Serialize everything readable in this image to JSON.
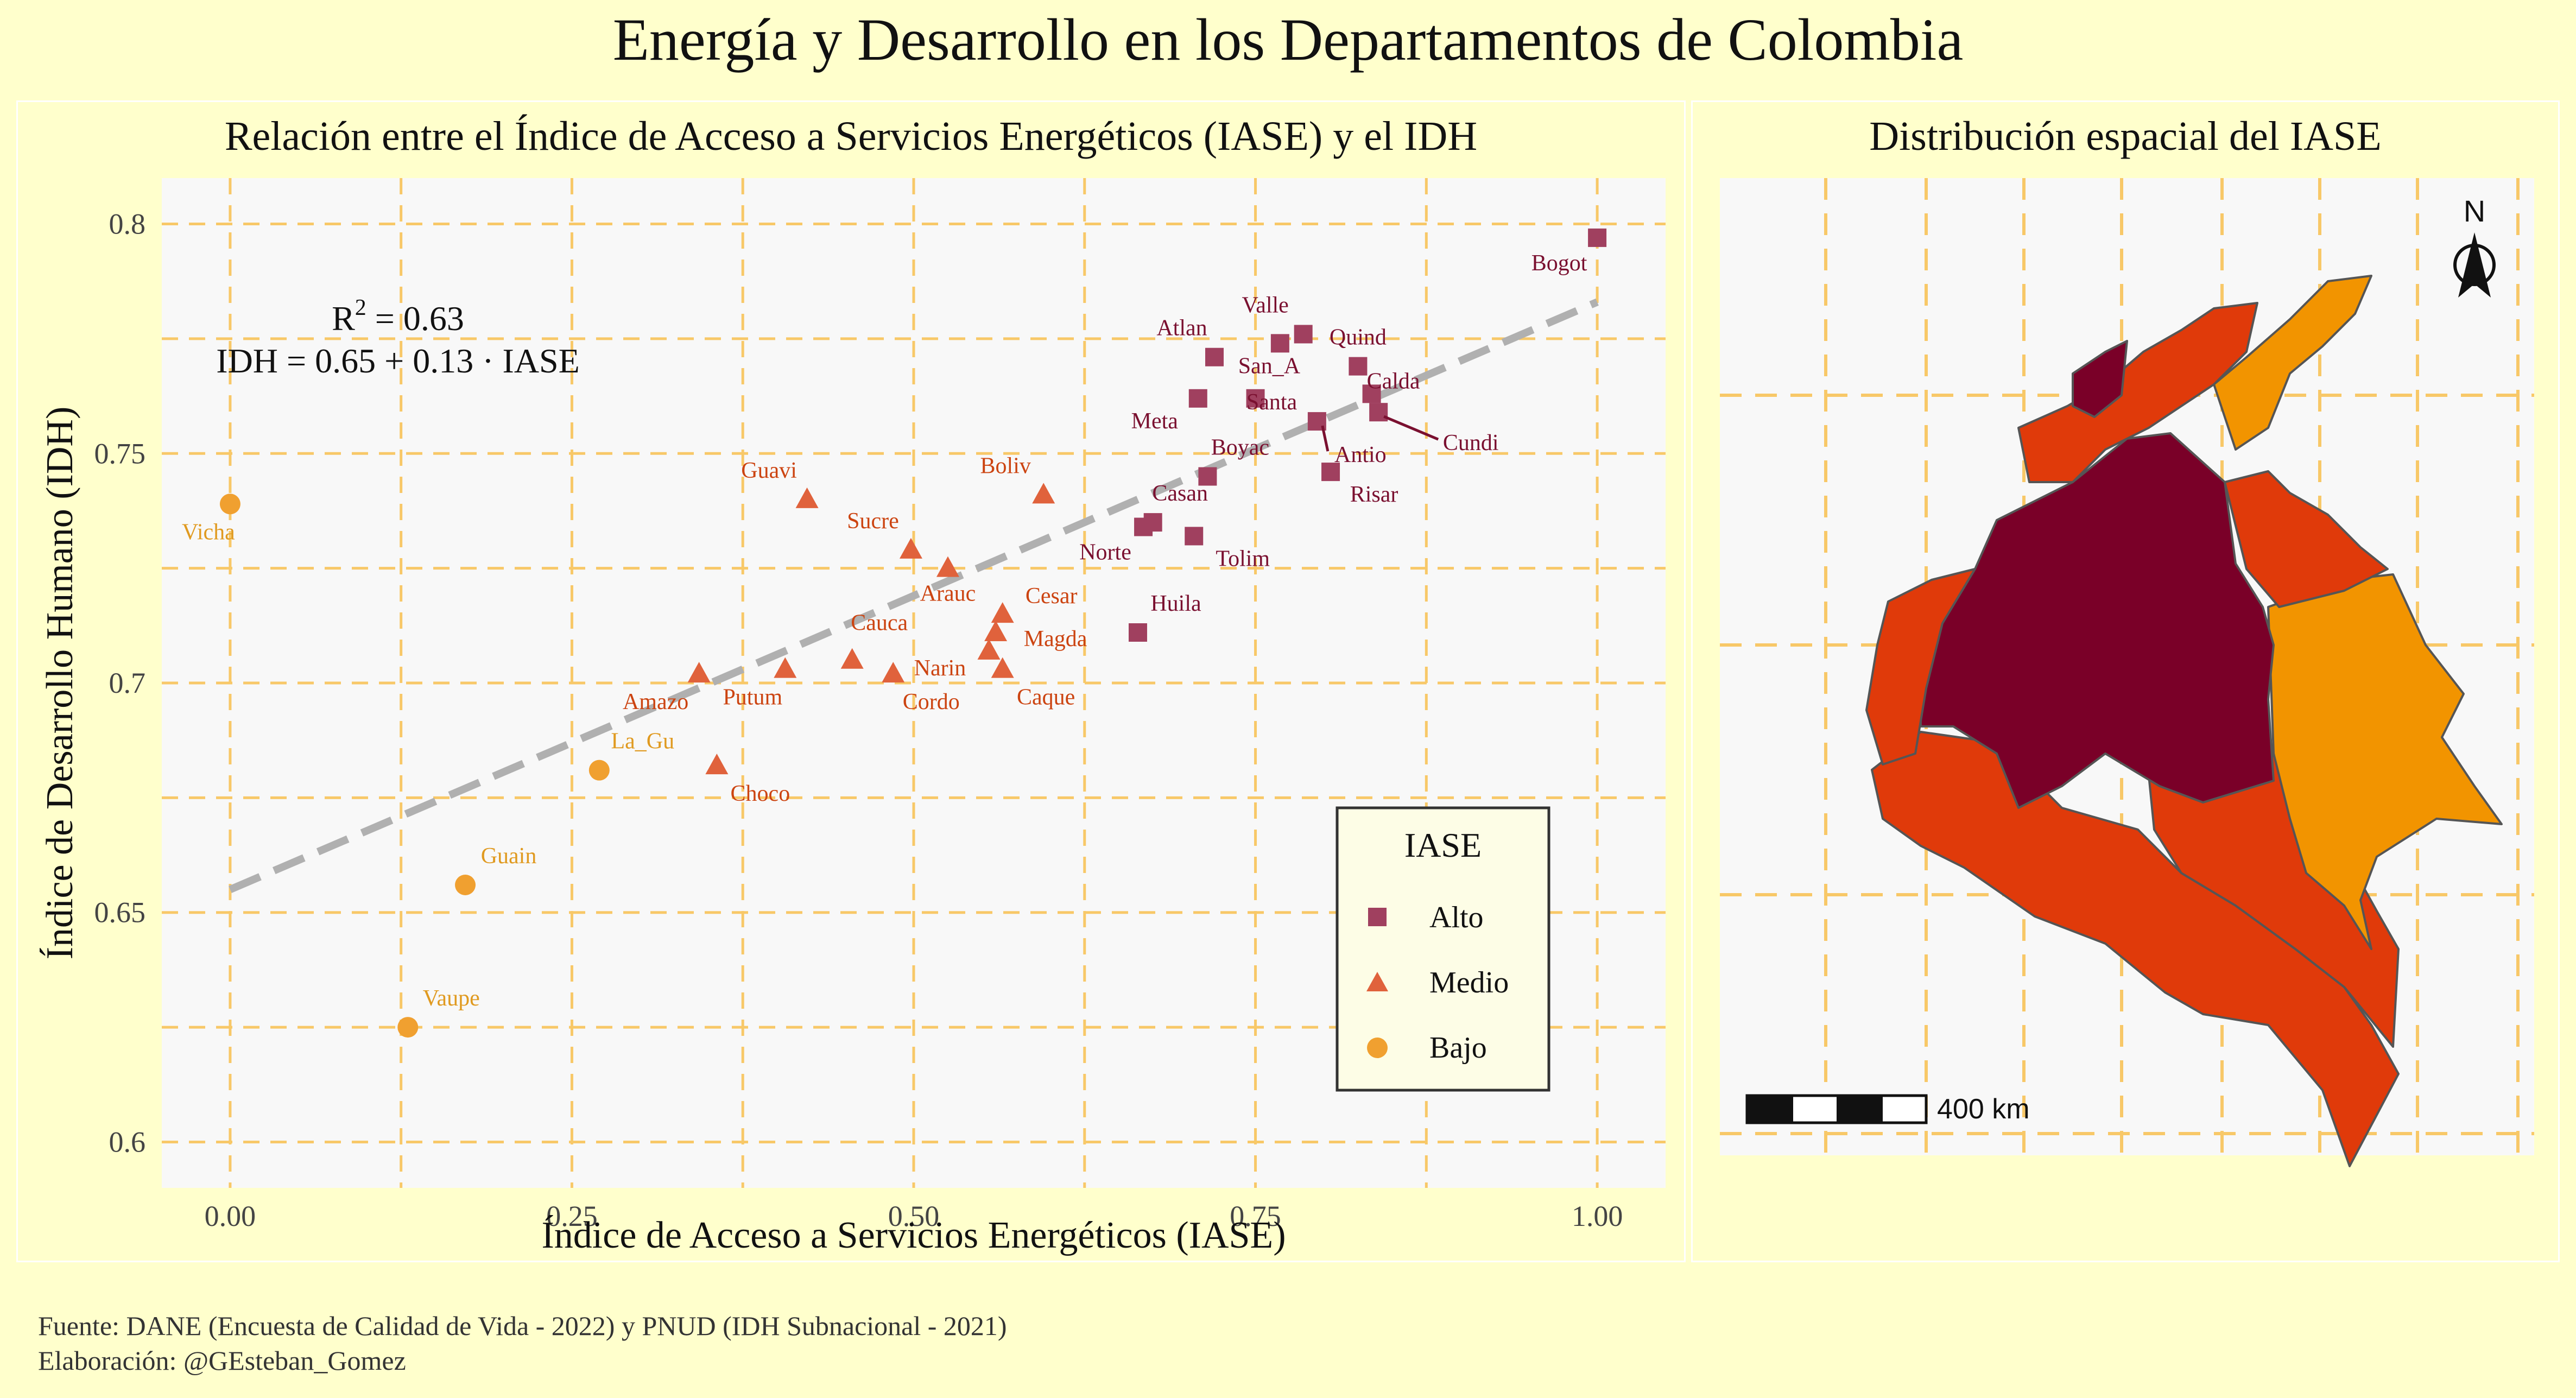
{
  "title": "Energía y Desarrollo en los Departamentos de Colombia",
  "left_panel": {
    "subtitle": "Relación entre el Índice de Acceso a Servicios Energéticos (IASE) y el IDH"
  },
  "right_panel": {
    "subtitle": "Distribución espacial del IASE",
    "scale_label": "400 km",
    "north_label": "N"
  },
  "footer": {
    "source": "Fuente: DANE (Encuesta de Calidad de Vida - 2022) y PNUD (IDH Subnacional - 2021)",
    "credit": "Elaboración: @GEsteban_Gomez"
  },
  "colors": {
    "Alto": "#a0405f",
    "Medio": "#e0623c",
    "Bajo": "#f0a030",
    "Alto_text": "#7a1030",
    "Medio_text": "#cc4411",
    "Bajo_text": "#e09a20",
    "background": "#ffffcc",
    "plot_bg": "#f8f8f8",
    "grid": "#f8c868"
  },
  "chart_data": {
    "type": "scatter",
    "title": "Relación entre el Índice de Acceso a Servicios Energéticos (IASE) y el IDH",
    "xlabel": "Índice de Acceso a Servicios Energéticos (IASE)",
    "ylabel": "Índice de Desarrollo Humano (IDH)",
    "xlim": [
      -0.05,
      1.05
    ],
    "ylim": [
      0.59,
      0.81
    ],
    "xticks": [
      "0.00",
      "0.25",
      "0.50",
      "0.75",
      "1.00"
    ],
    "yticks": [
      "0.6",
      "0.65",
      "0.7",
      "0.75",
      "0.8"
    ],
    "annotation": {
      "r2_prefix": "R",
      "r2_sup": "2",
      "r2_value": " = 0.63",
      "equation": "IDH = 0.65 + 0.13 · IASE"
    },
    "trendline": {
      "intercept": 0.655,
      "slope": 0.128
    },
    "legend": {
      "title": "IASE",
      "position": "bottom-right",
      "entries": [
        "Alto",
        "Medio",
        "Bajo"
      ]
    },
    "points": [
      {
        "label": "Bogot",
        "x": 1.0,
        "y": 0.797,
        "group": "Alto"
      },
      {
        "label": "Valle",
        "x": 0.785,
        "y": 0.776,
        "group": "Alto"
      },
      {
        "label": "Quind",
        "x": 0.825,
        "y": 0.769,
        "group": "Alto"
      },
      {
        "label": "Atlan",
        "x": 0.72,
        "y": 0.771,
        "group": "Alto"
      },
      {
        "label": "San_A",
        "x": 0.768,
        "y": 0.774,
        "group": "Alto"
      },
      {
        "label": "Calda",
        "x": 0.835,
        "y": 0.763,
        "group": "Alto"
      },
      {
        "label": "Santa",
        "x": 0.75,
        "y": 0.762,
        "group": "Alto"
      },
      {
        "label": "Meta",
        "x": 0.708,
        "y": 0.762,
        "group": "Alto"
      },
      {
        "label": "Antio",
        "x": 0.795,
        "y": 0.757,
        "group": "Alto"
      },
      {
        "label": "Cundi",
        "x": 0.84,
        "y": 0.759,
        "group": "Alto"
      },
      {
        "label": "Boyac",
        "x": 0.715,
        "y": 0.745,
        "group": "Alto"
      },
      {
        "label": "Risar",
        "x": 0.805,
        "y": 0.746,
        "group": "Alto"
      },
      {
        "label": "Casan",
        "x": 0.675,
        "y": 0.735,
        "group": "Alto"
      },
      {
        "label": "Norte",
        "x": 0.668,
        "y": 0.734,
        "group": "Alto"
      },
      {
        "label": "Tolim",
        "x": 0.705,
        "y": 0.732,
        "group": "Alto"
      },
      {
        "label": "Huila",
        "x": 0.664,
        "y": 0.711,
        "group": "Alto"
      },
      {
        "label": "Guavi",
        "x": 0.422,
        "y": 0.74,
        "group": "Medio"
      },
      {
        "label": "Boliv",
        "x": 0.595,
        "y": 0.741,
        "group": "Medio"
      },
      {
        "label": "Sucre",
        "x": 0.498,
        "y": 0.729,
        "group": "Medio"
      },
      {
        "label": "Arauc",
        "x": 0.525,
        "y": 0.725,
        "group": "Medio"
      },
      {
        "label": "Cesar",
        "x": 0.565,
        "y": 0.715,
        "group": "Medio"
      },
      {
        "label": "Magda",
        "x": 0.56,
        "y": 0.711,
        "group": "Medio"
      },
      {
        "label": "Narin",
        "x": 0.555,
        "y": 0.707,
        "group": "Medio"
      },
      {
        "label": "Cauca",
        "x": 0.455,
        "y": 0.705,
        "group": "Medio"
      },
      {
        "label": "Putum",
        "x": 0.406,
        "y": 0.703,
        "group": "Medio"
      },
      {
        "label": "Amazo",
        "x": 0.343,
        "y": 0.702,
        "group": "Medio"
      },
      {
        "label": "Cordo",
        "x": 0.485,
        "y": 0.702,
        "group": "Medio"
      },
      {
        "label": "Caque",
        "x": 0.565,
        "y": 0.703,
        "group": "Medio"
      },
      {
        "label": "Choco",
        "x": 0.356,
        "y": 0.682,
        "group": "Medio"
      },
      {
        "label": "Vicha",
        "x": 0.0,
        "y": 0.739,
        "group": "Bajo"
      },
      {
        "label": "La_Gu",
        "x": 0.27,
        "y": 0.681,
        "group": "Bajo"
      },
      {
        "label": "Guain",
        "x": 0.172,
        "y": 0.656,
        "group": "Bajo"
      },
      {
        "label": "Vaupe",
        "x": 0.13,
        "y": 0.625,
        "group": "Bajo"
      }
    ]
  }
}
